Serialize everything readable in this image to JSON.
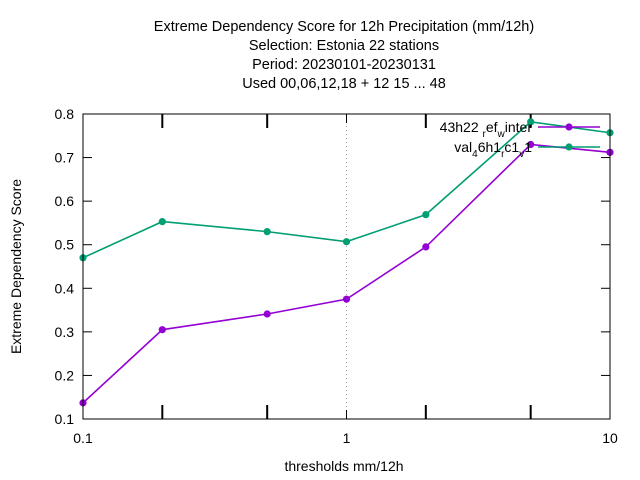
{
  "chart_data": {
    "type": "line",
    "title_lines": [
      "Extreme Dependency Score  for 12h Precipitation (mm/12h)",
      "Selection: Estonia      22 stations",
      "Period: 20230101-20230131",
      "Used  00,06,12,18  + 12 15 ... 48"
    ],
    "xlabel": "thresholds mm/12h",
    "ylabel": "Extreme Dependency Score",
    "x_scale": "log",
    "xlim": [
      0.1,
      10
    ],
    "ylim": [
      0.1,
      0.8
    ],
    "x_ticks": [
      {
        "value": 0.1,
        "label": "0.1"
      },
      {
        "value": 1,
        "label": "1"
      },
      {
        "value": 10,
        "label": "10"
      }
    ],
    "x_minor_ticks": [
      0.2,
      0.5,
      2,
      5
    ],
    "y_ticks": [
      {
        "value": 0.1,
        "label": "0.1"
      },
      {
        "value": 0.2,
        "label": "0.2"
      },
      {
        "value": 0.3,
        "label": "0.3"
      },
      {
        "value": 0.4,
        "label": "0.4"
      },
      {
        "value": 0.5,
        "label": "0.5"
      },
      {
        "value": 0.6,
        "label": "0.6"
      },
      {
        "value": 0.7,
        "label": "0.7"
      },
      {
        "value": 0.8,
        "label": "0.8"
      }
    ],
    "grid": {
      "x": true,
      "y": false
    },
    "legend_position": "top-right",
    "series": [
      {
        "name": "43h22",
        "legend_parts": [
          {
            "text": "43h22 ",
            "sub": false
          },
          {
            "text": "r",
            "sub": true
          },
          {
            "text": "ef",
            "sub": false
          },
          {
            "text": "w",
            "sub": true
          },
          {
            "text": "inter",
            "sub": false
          }
        ],
        "color": "#9400d3",
        "x": [
          0.1,
          0.2,
          0.5,
          1,
          2,
          5,
          10
        ],
        "y": [
          0.137,
          0.305,
          0.341,
          0.375,
          0.495,
          0.73,
          0.712
        ]
      },
      {
        "name": "val",
        "legend_parts": [
          {
            "text": "val",
            "sub": false
          },
          {
            "text": "4",
            "sub": true
          },
          {
            "text": "6h1",
            "sub": false
          },
          {
            "text": "r",
            "sub": true
          },
          {
            "text": "c1",
            "sub": false
          },
          {
            "text": "v",
            "sub": true
          },
          {
            "text": "1",
            "sub": false
          }
        ],
        "color": "#009e73",
        "x": [
          0.1,
          0.2,
          0.5,
          1,
          2,
          5,
          10
        ],
        "y": [
          0.47,
          0.553,
          0.53,
          0.507,
          0.569,
          0.782,
          0.757
        ]
      }
    ]
  }
}
